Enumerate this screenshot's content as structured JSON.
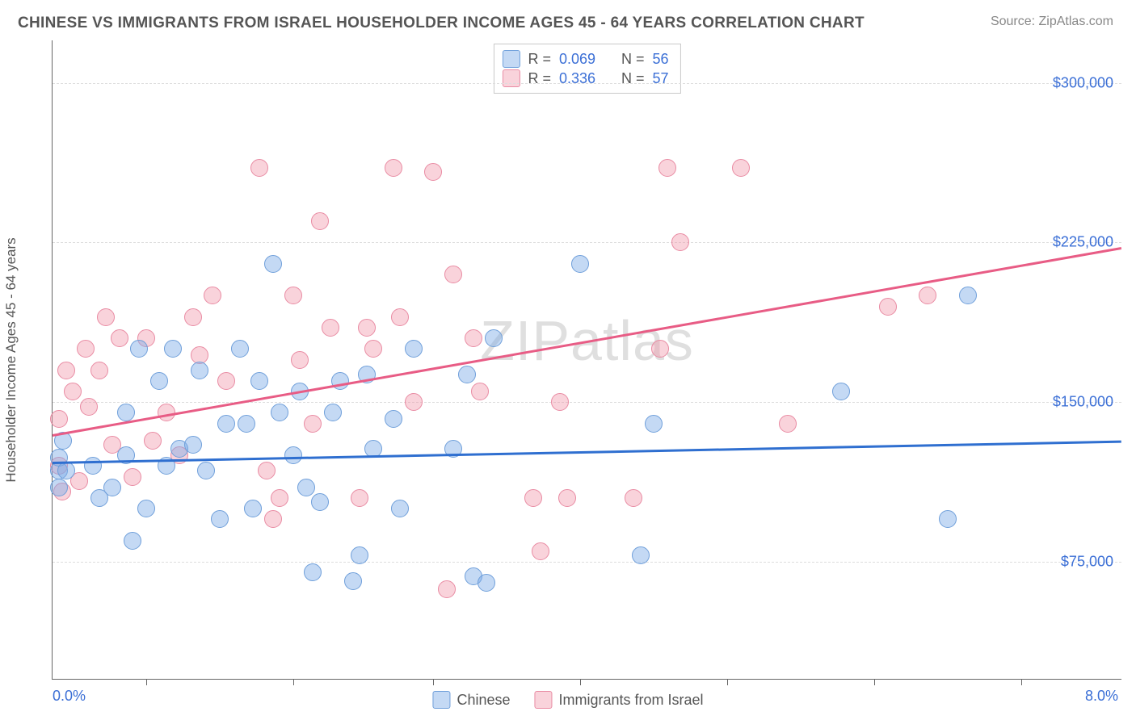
{
  "header": {
    "title": "CHINESE VS IMMIGRANTS FROM ISRAEL HOUSEHOLDER INCOME AGES 45 - 64 YEARS CORRELATION CHART",
    "source": "Source: ZipAtlas.com"
  },
  "watermark": "ZIPatlas",
  "axes": {
    "ylabel": "Householder Income Ages 45 - 64 years",
    "y_min": 20000,
    "y_max": 320000,
    "y_ticks": [
      75000,
      150000,
      225000,
      300000
    ],
    "y_tick_labels": [
      "$75,000",
      "$150,000",
      "$225,000",
      "$300,000"
    ],
    "x_min": 0.0,
    "x_max": 8.0,
    "x_left_label": "0.0%",
    "x_right_label": "8.0%",
    "x_tick_positions": [
      0.7,
      1.8,
      2.85,
      3.95,
      5.05,
      6.15,
      7.25
    ],
    "grid_color": "#dddddd",
    "axis_color": "#666666",
    "tick_label_color": "#3b6fd6",
    "label_fontsize": 17,
    "tick_fontsize": 18
  },
  "series": {
    "blue": {
      "label": "Chinese",
      "fill": "rgba(124,170,230,0.45)",
      "stroke": "#6f9fda",
      "marker_radius": 11,
      "trend_color": "#2f6fd0",
      "trend_y_at_xmin": 122000,
      "trend_y_at_xmax": 132000,
      "r_value": "0.069",
      "n_value": "56",
      "points": [
        [
          0.05,
          118000
        ],
        [
          0.05,
          124000
        ],
        [
          0.05,
          110000
        ],
        [
          0.08,
          132000
        ],
        [
          0.1,
          118000
        ],
        [
          0.3,
          120000
        ],
        [
          0.35,
          105000
        ],
        [
          0.45,
          110000
        ],
        [
          0.55,
          145000
        ],
        [
          0.55,
          125000
        ],
        [
          0.6,
          85000
        ],
        [
          0.65,
          175000
        ],
        [
          0.7,
          100000
        ],
        [
          0.8,
          160000
        ],
        [
          0.85,
          120000
        ],
        [
          0.9,
          175000
        ],
        [
          0.95,
          128000
        ],
        [
          1.05,
          130000
        ],
        [
          1.1,
          165000
        ],
        [
          1.15,
          118000
        ],
        [
          1.25,
          95000
        ],
        [
          1.3,
          140000
        ],
        [
          1.4,
          175000
        ],
        [
          1.45,
          140000
        ],
        [
          1.5,
          100000
        ],
        [
          1.55,
          160000
        ],
        [
          1.65,
          215000
        ],
        [
          1.7,
          145000
        ],
        [
          1.8,
          125000
        ],
        [
          1.85,
          155000
        ],
        [
          1.9,
          110000
        ],
        [
          1.95,
          70000
        ],
        [
          2.0,
          103000
        ],
        [
          2.1,
          145000
        ],
        [
          2.15,
          160000
        ],
        [
          2.25,
          66000
        ],
        [
          2.3,
          78000
        ],
        [
          2.35,
          163000
        ],
        [
          2.4,
          128000
        ],
        [
          2.55,
          142000
        ],
        [
          2.6,
          100000
        ],
        [
          2.7,
          175000
        ],
        [
          3.0,
          128000
        ],
        [
          3.1,
          163000
        ],
        [
          3.15,
          68000
        ],
        [
          3.25,
          65000
        ],
        [
          3.3,
          180000
        ],
        [
          3.95,
          215000
        ],
        [
          4.4,
          78000
        ],
        [
          4.5,
          140000
        ],
        [
          5.9,
          155000
        ],
        [
          6.7,
          95000
        ],
        [
          6.85,
          200000
        ]
      ]
    },
    "pink": {
      "label": "Immigrants from Israel",
      "fill": "rgba(240,150,170,0.42)",
      "stroke": "#e98ba3",
      "marker_radius": 11,
      "trend_color": "#e85c85",
      "trend_y_at_xmin": 135000,
      "trend_y_at_xmax": 223000,
      "r_value": "0.336",
      "n_value": "57",
      "points": [
        [
          0.05,
          142000
        ],
        [
          0.05,
          120000
        ],
        [
          0.07,
          108000
        ],
        [
          0.1,
          165000
        ],
        [
          0.15,
          155000
        ],
        [
          0.2,
          113000
        ],
        [
          0.25,
          175000
        ],
        [
          0.27,
          148000
        ],
        [
          0.35,
          165000
        ],
        [
          0.4,
          190000
        ],
        [
          0.45,
          130000
        ],
        [
          0.5,
          180000
        ],
        [
          0.6,
          115000
        ],
        [
          0.7,
          180000
        ],
        [
          0.75,
          132000
        ],
        [
          0.85,
          145000
        ],
        [
          0.95,
          125000
        ],
        [
          1.05,
          190000
        ],
        [
          1.1,
          172000
        ],
        [
          1.2,
          200000
        ],
        [
          1.3,
          160000
        ],
        [
          1.55,
          260000
        ],
        [
          1.6,
          118000
        ],
        [
          1.65,
          95000
        ],
        [
          1.7,
          105000
        ],
        [
          1.8,
          200000
        ],
        [
          1.85,
          170000
        ],
        [
          1.95,
          140000
        ],
        [
          2.0,
          235000
        ],
        [
          2.08,
          185000
        ],
        [
          2.3,
          105000
        ],
        [
          2.35,
          185000
        ],
        [
          2.4,
          175000
        ],
        [
          2.55,
          260000
        ],
        [
          2.6,
          190000
        ],
        [
          2.7,
          150000
        ],
        [
          2.85,
          258000
        ],
        [
          2.95,
          62000
        ],
        [
          3.0,
          210000
        ],
        [
          3.15,
          180000
        ],
        [
          3.2,
          155000
        ],
        [
          3.6,
          105000
        ],
        [
          3.65,
          80000
        ],
        [
          3.8,
          150000
        ],
        [
          3.85,
          105000
        ],
        [
          4.35,
          105000
        ],
        [
          4.55,
          175000
        ],
        [
          4.6,
          260000
        ],
        [
          4.7,
          225000
        ],
        [
          5.15,
          260000
        ],
        [
          5.5,
          140000
        ],
        [
          6.25,
          195000
        ],
        [
          6.55,
          200000
        ]
      ]
    }
  },
  "legend_top": {
    "r_label": "R =",
    "n_label": "N ="
  },
  "colors": {
    "title_color": "#555555",
    "source_color": "#888888",
    "background": "#ffffff",
    "value_color": "#3b6fd6"
  }
}
